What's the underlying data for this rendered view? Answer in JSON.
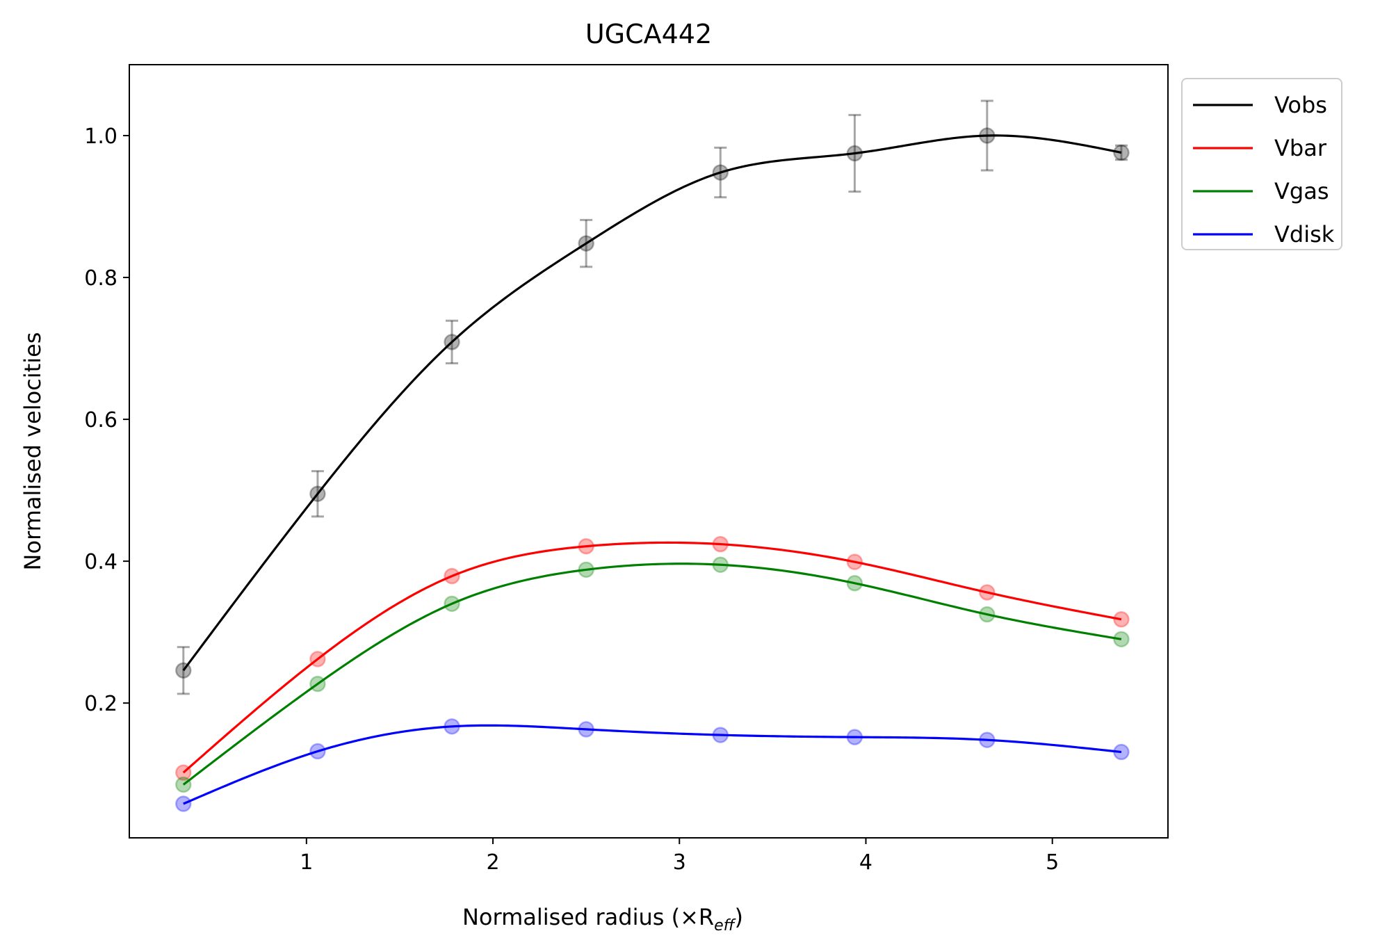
{
  "chart_data": {
    "type": "line",
    "title": "UGCA442",
    "xlabel": "Normalised radius (×R",
    "xlabel_sub": "eff",
    "xlabel_close": ")",
    "ylabel": "Normalised velocities",
    "xlim": [
      0.05,
      5.62
    ],
    "ylim": [
      0.01,
      1.1
    ],
    "xticks": [
      1,
      2,
      3,
      4,
      5
    ],
    "xtick_labels": [
      "1",
      "2",
      "3",
      "4",
      "5"
    ],
    "yticks": [
      0.2,
      0.4,
      0.6,
      0.8,
      1.0
    ],
    "ytick_labels": [
      "0.2",
      "0.4",
      "0.6",
      "0.8",
      "1.0"
    ],
    "grid": false,
    "legend_position": "outside-top-right",
    "x": [
      0.34,
      1.06,
      1.78,
      2.5,
      3.22,
      3.94,
      4.65,
      5.37
    ],
    "series": [
      {
        "name": "Vobs",
        "color": "#000000",
        "values": [
          0.246,
          0.495,
          0.709,
          0.848,
          0.948,
          0.975,
          1.0,
          0.976
        ],
        "errors": [
          0.033,
          0.032,
          0.03,
          0.033,
          0.035,
          0.054,
          0.049,
          0.01
        ]
      },
      {
        "name": "Vbar",
        "color": "#ff0000",
        "values": [
          0.102,
          0.262,
          0.379,
          0.421,
          0.424,
          0.399,
          0.356,
          0.318
        ]
      },
      {
        "name": "Vgas",
        "color": "#008000",
        "values": [
          0.085,
          0.227,
          0.34,
          0.388,
          0.395,
          0.369,
          0.325,
          0.29
        ]
      },
      {
        "name": "Vdisk",
        "color": "#0000ff",
        "values": [
          0.058,
          0.132,
          0.167,
          0.163,
          0.155,
          0.152,
          0.148,
          0.131
        ]
      }
    ]
  }
}
